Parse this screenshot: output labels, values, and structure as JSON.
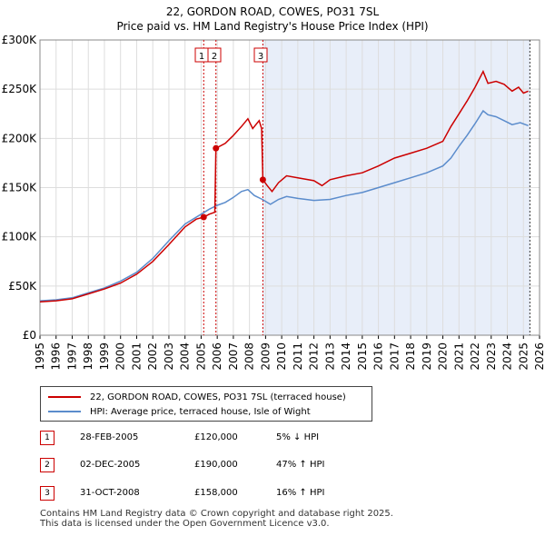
{
  "colors": {
    "property": "#cc0000",
    "hpi": "#5b8ccc",
    "shade": "#e8eef9",
    "grid": "#dddddd"
  },
  "chart_data": {
    "type": "line",
    "title": "22, GORDON ROAD, COWES, PO31 7SL",
    "subtitle": "Price paid vs. HM Land Registry's House Price Index (HPI)",
    "xlabel": "",
    "ylabel": "",
    "xlim": [
      1995,
      2026
    ],
    "ylim": [
      0,
      300000
    ],
    "y_ticks": [
      {
        "value": 0,
        "label": "£0"
      },
      {
        "value": 50000,
        "label": "£50K"
      },
      {
        "value": 100000,
        "label": "£100K"
      },
      {
        "value": 150000,
        "label": "£150K"
      },
      {
        "value": 200000,
        "label": "£200K"
      },
      {
        "value": 250000,
        "label": "£250K"
      },
      {
        "value": 300000,
        "label": "£300K"
      }
    ],
    "x_ticks": [
      "1995",
      "1996",
      "1997",
      "1998",
      "1999",
      "2000",
      "2001",
      "2002",
      "2003",
      "2004",
      "2005",
      "2006",
      "2007",
      "2008",
      "2009",
      "2010",
      "2011",
      "2012",
      "2013",
      "2014",
      "2015",
      "2016",
      "2017",
      "2018",
      "2019",
      "2020",
      "2021",
      "2022",
      "2023",
      "2024",
      "2025",
      "2026"
    ],
    "shaded_period": [
      2008.83,
      2025.4
    ],
    "markers": [
      {
        "label": "1",
        "x": 2005.16,
        "y": 120000
      },
      {
        "label": "2",
        "x": 2005.92,
        "y": 190000
      },
      {
        "label": "3",
        "x": 2008.83,
        "y": 158000
      }
    ],
    "series": [
      {
        "name": "22, GORDON ROAD, COWES, PO31 7SL (terraced house)",
        "color": "#cc0000",
        "points": [
          [
            1995,
            34000
          ],
          [
            1996,
            35000
          ],
          [
            1997,
            37000
          ],
          [
            1998,
            42000
          ],
          [
            1999,
            47000
          ],
          [
            2000,
            53000
          ],
          [
            2001,
            62000
          ],
          [
            2002,
            75000
          ],
          [
            2003,
            92000
          ],
          [
            2004,
            110000
          ],
          [
            2004.7,
            118000
          ],
          [
            2005.16,
            120000
          ],
          [
            2005.5,
            123000
          ],
          [
            2005.85,
            125000
          ],
          [
            2005.92,
            190000
          ],
          [
            2006.5,
            195000
          ],
          [
            2007,
            203000
          ],
          [
            2007.5,
            212000
          ],
          [
            2007.9,
            220000
          ],
          [
            2008.2,
            210000
          ],
          [
            2008.6,
            218000
          ],
          [
            2008.75,
            210000
          ],
          [
            2008.83,
            158000
          ],
          [
            2009.1,
            152000
          ],
          [
            2009.4,
            146000
          ],
          [
            2009.8,
            155000
          ],
          [
            2010.3,
            162000
          ],
          [
            2011,
            160000
          ],
          [
            2012,
            157000
          ],
          [
            2012.5,
            152000
          ],
          [
            2013,
            158000
          ],
          [
            2014,
            162000
          ],
          [
            2015,
            165000
          ],
          [
            2016,
            172000
          ],
          [
            2017,
            180000
          ],
          [
            2018,
            185000
          ],
          [
            2019,
            190000
          ],
          [
            2020,
            197000
          ],
          [
            2020.5,
            212000
          ],
          [
            2021,
            225000
          ],
          [
            2021.5,
            238000
          ],
          [
            2022,
            252000
          ],
          [
            2022.5,
            268000
          ],
          [
            2022.8,
            256000
          ],
          [
            2023.3,
            258000
          ],
          [
            2023.8,
            255000
          ],
          [
            2024.3,
            248000
          ],
          [
            2024.7,
            252000
          ],
          [
            2025,
            246000
          ],
          [
            2025.3,
            248000
          ]
        ]
      },
      {
        "name": "HPI: Average price, terraced house, Isle of Wight",
        "color": "#5b8ccc",
        "points": [
          [
            1995,
            35000
          ],
          [
            1996,
            36000
          ],
          [
            1997,
            38000
          ],
          [
            1998,
            43000
          ],
          [
            1999,
            48000
          ],
          [
            2000,
            55000
          ],
          [
            2001,
            64000
          ],
          [
            2002,
            78000
          ],
          [
            2003,
            96000
          ],
          [
            2004,
            113000
          ],
          [
            2005,
            123000
          ],
          [
            2005.5,
            128000
          ],
          [
            2006,
            132000
          ],
          [
            2006.5,
            135000
          ],
          [
            2007,
            140000
          ],
          [
            2007.5,
            146000
          ],
          [
            2007.9,
            148000
          ],
          [
            2008.3,
            142000
          ],
          [
            2008.8,
            138000
          ],
          [
            2009.3,
            133000
          ],
          [
            2009.8,
            138000
          ],
          [
            2010.3,
            141000
          ],
          [
            2011,
            139000
          ],
          [
            2012,
            137000
          ],
          [
            2013,
            138000
          ],
          [
            2014,
            142000
          ],
          [
            2015,
            145000
          ],
          [
            2016,
            150000
          ],
          [
            2017,
            155000
          ],
          [
            2018,
            160000
          ],
          [
            2019,
            165000
          ],
          [
            2020,
            172000
          ],
          [
            2020.5,
            180000
          ],
          [
            2021,
            192000
          ],
          [
            2021.5,
            203000
          ],
          [
            2022,
            215000
          ],
          [
            2022.5,
            228000
          ],
          [
            2022.8,
            224000
          ],
          [
            2023.3,
            222000
          ],
          [
            2023.8,
            218000
          ],
          [
            2024.3,
            214000
          ],
          [
            2024.8,
            216000
          ],
          [
            2025.3,
            213000
          ]
        ]
      }
    ]
  },
  "legend": {
    "property": "22, GORDON ROAD, COWES, PO31 7SL (terraced house)",
    "hpi": "HPI: Average price, terraced house, Isle of Wight"
  },
  "sales": [
    {
      "num": "1",
      "date": "28-FEB-2005",
      "price": "£120,000",
      "hpi": "5% ↓ HPI"
    },
    {
      "num": "2",
      "date": "02-DEC-2005",
      "price": "£190,000",
      "hpi": "47% ↑ HPI"
    },
    {
      "num": "3",
      "date": "31-OCT-2008",
      "price": "£158,000",
      "hpi": "16% ↑ HPI"
    }
  ],
  "footer": {
    "line1": "Contains HM Land Registry data © Crown copyright and database right 2025.",
    "line2": "This data is licensed under the Open Government Licence v3.0."
  }
}
